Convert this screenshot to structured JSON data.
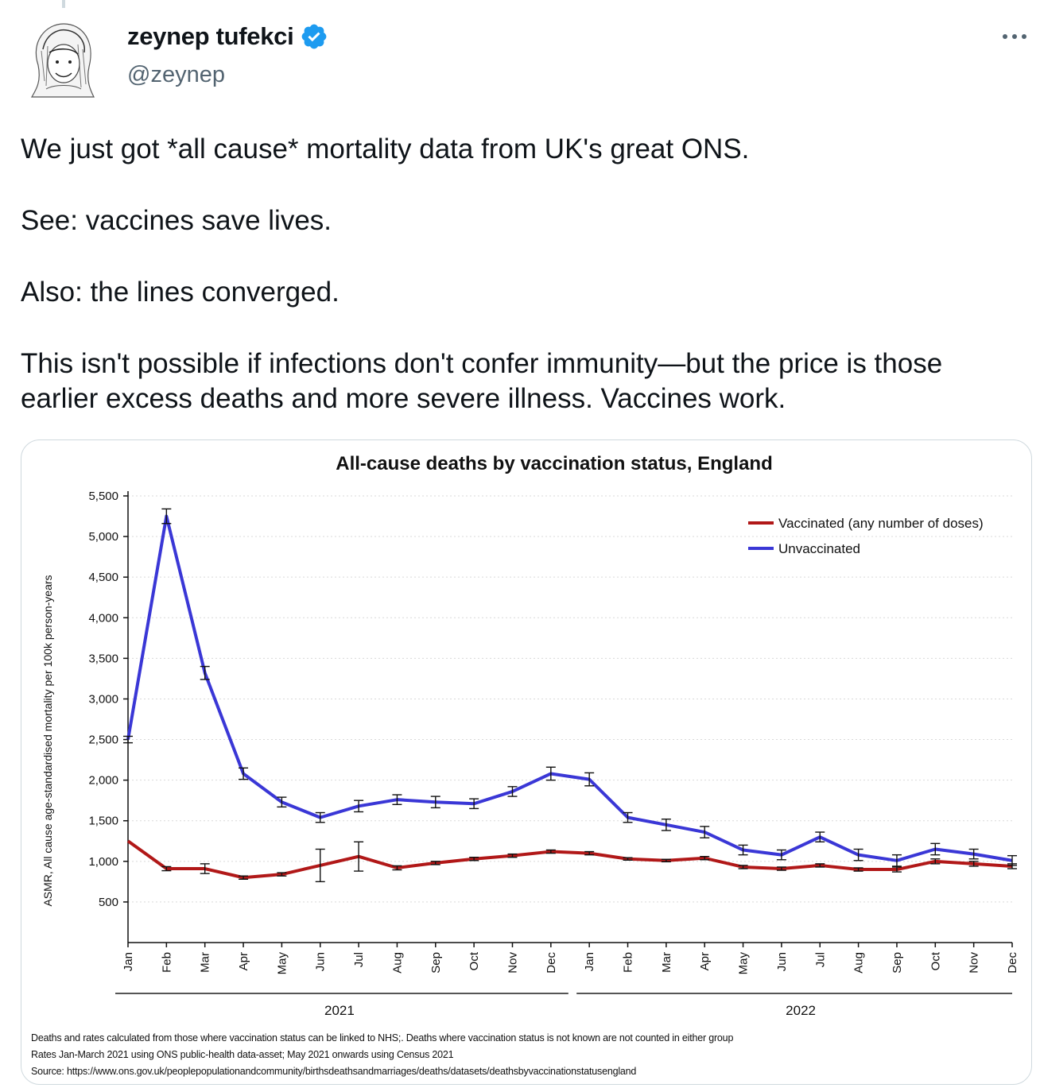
{
  "tweet": {
    "author": {
      "display_name": "zeynep tufekci",
      "handle": "@zeynep",
      "verified": true,
      "avatar_icon": "sketch-portrait-avatar"
    },
    "more_icon": "ellipsis-icon",
    "paragraphs": [
      "We just got *all cause* mortality data from UK's great ONS.",
      "See: vaccines save lives.",
      "Also: the lines converged.",
      "This isn't possible if infections don't confer immunity—but the price is those earlier excess deaths and more severe illness. Vaccines work."
    ]
  },
  "chart_data": {
    "type": "line",
    "title": "All-cause deaths by vaccination status, England",
    "ylabel": "ASMR, All cause age-standardised mortality per 100k person-years",
    "ylim": [
      0,
      5500
    ],
    "yticks": [
      500,
      1000,
      1500,
      2000,
      2500,
      3000,
      3500,
      4000,
      4500,
      5000,
      5500
    ],
    "ytick_labels": [
      "500",
      "1,000",
      "1,500",
      "2,000",
      "2,500",
      "3,000",
      "3,500",
      "4,000",
      "4,500",
      "5,000",
      "5,500"
    ],
    "categories": [
      "Jan",
      "Feb",
      "Mar",
      "Apr",
      "May",
      "Jun",
      "Jul",
      "Aug",
      "Sep",
      "Oct",
      "Nov",
      "Dec",
      "Jan",
      "Feb",
      "Mar",
      "Apr",
      "May",
      "Jun",
      "Jul",
      "Aug",
      "Sep",
      "Oct",
      "Nov",
      "Dec"
    ],
    "year_groups": [
      {
        "label": "2021",
        "start": 0,
        "end": 11
      },
      {
        "label": "2022",
        "start": 12,
        "end": 23
      }
    ],
    "legend_position": "top-right",
    "grid": true,
    "series": [
      {
        "name": "Vaccinated (any number of doses)",
        "color": "#b11818",
        "values": [
          1250,
          910,
          910,
          800,
          840,
          950,
          1060,
          920,
          980,
          1030,
          1070,
          1120,
          1100,
          1030,
          1010,
          1040,
          930,
          910,
          950,
          900,
          900,
          1000,
          970,
          940
        ],
        "error": [
          0,
          25,
          60,
          20,
          20,
          200,
          180,
          25,
          20,
          20,
          20,
          20,
          20,
          15,
          15,
          20,
          20,
          20,
          20,
          20,
          30,
          30,
          30,
          30
        ]
      },
      {
        "name": "Unvaccinated",
        "color": "#3a37d6",
        "values": [
          2500,
          5250,
          3320,
          2080,
          1730,
          1540,
          1680,
          1760,
          1730,
          1710,
          1860,
          2080,
          2010,
          1540,
          1450,
          1360,
          1140,
          1080,
          1300,
          1080,
          1010,
          1150,
          1090,
          1010
        ],
        "error": [
          40,
          90,
          80,
          70,
          60,
          60,
          70,
          60,
          70,
          60,
          60,
          80,
          80,
          60,
          70,
          70,
          60,
          60,
          60,
          70,
          70,
          70,
          60,
          60
        ]
      }
    ],
    "footnotes": [
      "Deaths and rates calculated from those where vaccination status can be linked to NHS;.  Deaths where vaccination status is not known are not counted in either group",
      "Rates Jan-March 2021 using ONS public-health data-asset; May 2021 onwards using Census 2021",
      "Source: https://www.ons.gov.uk/peoplepopulationandcommunity/birthsdeathsandmarriages/deaths/datasets/deathsbyvaccinationstatusengland"
    ]
  }
}
